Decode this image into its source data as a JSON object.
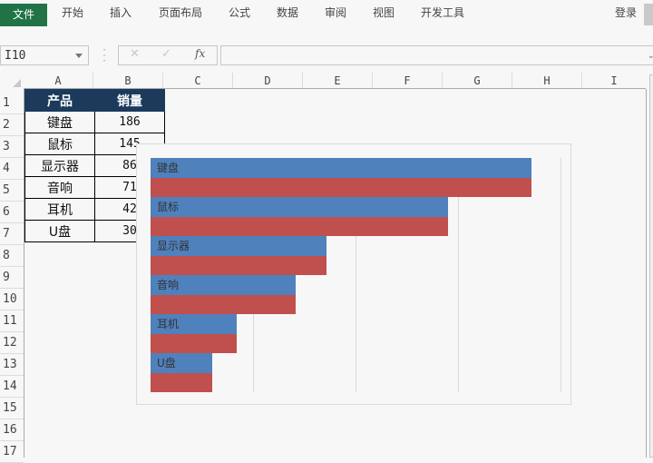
{
  "ribbon": {
    "tabs": [
      "文件",
      "开始",
      "插入",
      "页面布局",
      "公式",
      "数据",
      "审阅",
      "视图",
      "开发工具"
    ],
    "login_label": "登录"
  },
  "formula_bar": {
    "name_box": "I10",
    "cancel_icon": "✕",
    "enter_icon": "✓",
    "fx_label": "fx",
    "formula_value": ""
  },
  "grid": {
    "columns": [
      "A",
      "B",
      "C",
      "D",
      "E",
      "F",
      "G",
      "H",
      "I"
    ],
    "rows": [
      "1",
      "2",
      "3",
      "4",
      "5",
      "6",
      "7",
      "8",
      "9",
      "10",
      "11",
      "12",
      "13",
      "14",
      "15",
      "16",
      "17"
    ]
  },
  "table": {
    "headers": [
      "产品",
      "销量"
    ],
    "rows": [
      [
        "键盘",
        "186"
      ],
      [
        "鼠标",
        "145"
      ],
      [
        "显示器",
        "86"
      ],
      [
        "音响",
        "71"
      ],
      [
        "耳机",
        "42"
      ],
      [
        "U盘",
        "30"
      ]
    ]
  },
  "colors": {
    "header_fill": "#1b3a5c",
    "series_blue": "#4f81bd",
    "series_red": "#c0504d",
    "file_tab": "#217346"
  },
  "chart_data": {
    "type": "bar",
    "orientation": "horizontal",
    "categories": [
      "键盘",
      "鼠标",
      "显示器",
      "音响",
      "耳机",
      "U盘"
    ],
    "series": [
      {
        "name": "销量 (label bar)",
        "color": "#4f81bd",
        "values": [
          186,
          145,
          86,
          71,
          42,
          30
        ]
      },
      {
        "name": "销量",
        "color": "#c0504d",
        "values": [
          186,
          145,
          86,
          71,
          42,
          30
        ]
      }
    ],
    "category_labels_inside_bars": true,
    "title": "",
    "xlabel": "",
    "ylabel": "",
    "xlim": [
      0,
      200
    ],
    "major_unit": 50,
    "grid": "vertical",
    "legend": "none",
    "axis_labels_visible": false
  }
}
